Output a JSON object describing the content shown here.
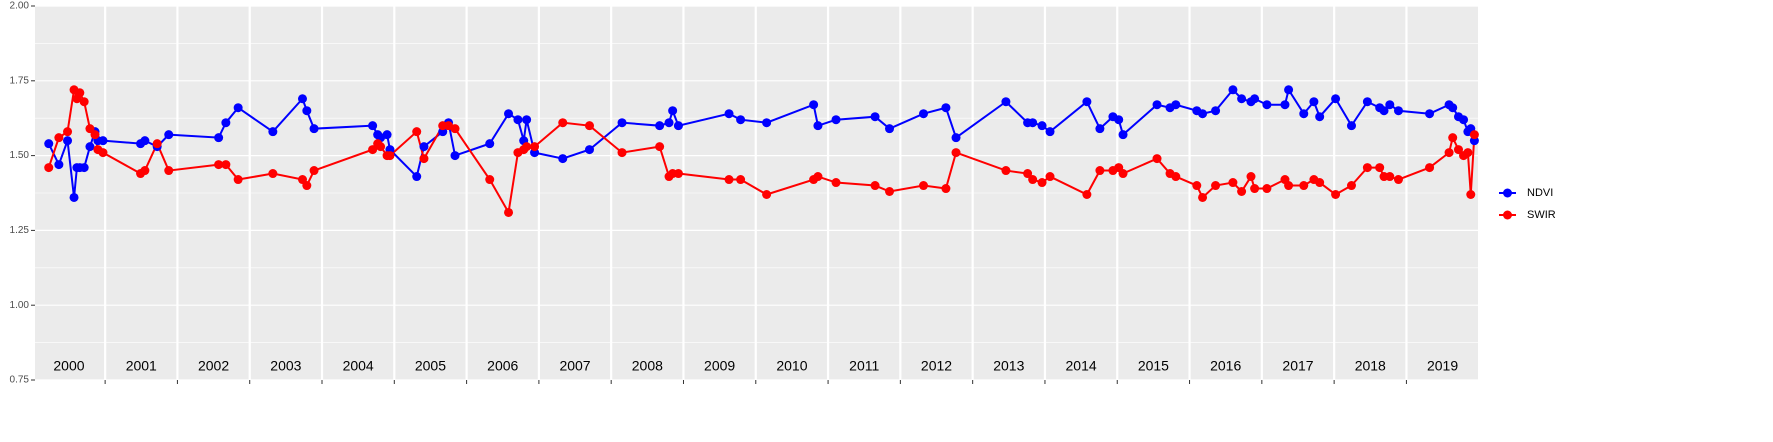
{
  "chart_data": {
    "type": "line",
    "x": [
      2000.22,
      2000.36,
      2000.48,
      2000.57,
      2000.61,
      2000.65,
      2000.71,
      2000.79,
      2000.86,
      2000.9,
      2000.97,
      2001.49,
      2001.55,
      2001.72,
      2001.88,
      2002.57,
      2002.67,
      2002.84,
      2003.32,
      2003.73,
      2003.79,
      2003.89,
      2004.7,
      2004.77,
      2004.81,
      2004.9,
      2004.94,
      2005.31,
      2005.41,
      2005.67,
      2005.75,
      2005.84,
      2006.32,
      2006.58,
      2006.71,
      2006.79,
      2006.83,
      2006.94,
      2007.33,
      2007.7,
      2008.15,
      2008.67,
      2008.8,
      2008.85,
      2008.93,
      2009.63,
      2009.79,
      2010.15,
      2010.8,
      2010.86,
      2011.11,
      2011.65,
      2011.85,
      2012.32,
      2012.63,
      2012.77,
      2013.46,
      2013.76,
      2013.83,
      2013.96,
      2014.07,
      2014.58,
      2014.76,
      2014.94,
      2015.02,
      2015.08,
      2015.55,
      2015.73,
      2015.81,
      2016.1,
      2016.18,
      2016.36,
      2016.6,
      2016.72,
      2016.85,
      2016.9,
      2017.07,
      2017.32,
      2017.37,
      2017.58,
      2017.72,
      2017.8,
      2018.02,
      2018.24,
      2018.46,
      2018.63,
      2018.69,
      2018.77,
      2018.89,
      2019.32,
      2019.59,
      2019.64,
      2019.72,
      2019.79,
      2019.85,
      2019.89,
      2019.94
    ],
    "series": [
      {
        "name": "NDVI",
        "color": "#0000ff",
        "values": [
          1.54,
          1.47,
          1.55,
          1.36,
          1.46,
          1.46,
          1.46,
          1.53,
          1.58,
          1.55,
          1.55,
          1.54,
          1.55,
          1.53,
          1.57,
          1.56,
          1.61,
          1.66,
          1.58,
          1.69,
          1.65,
          1.59,
          1.6,
          1.57,
          1.56,
          1.57,
          1.52,
          1.43,
          1.53,
          1.58,
          1.61,
          1.5,
          1.54,
          1.64,
          1.62,
          1.55,
          1.62,
          1.51,
          1.49,
          1.52,
          1.61,
          1.6,
          1.61,
          1.65,
          1.6,
          1.64,
          1.62,
          1.61,
          1.67,
          1.6,
          1.62,
          1.63,
          1.59,
          1.64,
          1.66,
          1.56,
          1.68,
          1.61,
          1.61,
          1.6,
          1.58,
          1.68,
          1.59,
          1.63,
          1.62,
          1.57,
          1.67,
          1.66,
          1.67,
          1.65,
          1.64,
          1.65,
          1.72,
          1.69,
          1.68,
          1.69,
          1.67,
          1.67,
          1.72,
          1.64,
          1.68,
          1.63,
          1.69,
          1.6,
          1.68,
          1.66,
          1.65,
          1.67,
          1.65,
          1.64,
          1.67,
          1.66,
          1.63,
          1.62,
          1.58,
          1.59,
          1.55
        ]
      },
      {
        "name": "SWIR",
        "color": "#ff0000",
        "values": [
          1.46,
          1.56,
          1.58,
          1.72,
          1.69,
          1.71,
          1.68,
          1.59,
          1.57,
          1.52,
          1.51,
          1.44,
          1.45,
          1.54,
          1.45,
          1.47,
          1.47,
          1.42,
          1.44,
          1.42,
          1.4,
          1.45,
          1.52,
          1.54,
          1.53,
          1.5,
          1.5,
          1.58,
          1.49,
          1.6,
          1.6,
          1.59,
          1.42,
          1.31,
          1.51,
          1.52,
          1.53,
          1.53,
          1.61,
          1.6,
          1.51,
          1.53,
          1.43,
          1.44,
          1.44,
          1.42,
          1.42,
          1.37,
          1.42,
          1.43,
          1.41,
          1.4,
          1.38,
          1.4,
          1.39,
          1.51,
          1.45,
          1.44,
          1.42,
          1.41,
          1.43,
          1.37,
          1.45,
          1.45,
          1.46,
          1.44,
          1.49,
          1.44,
          1.43,
          1.4,
          1.36,
          1.4,
          1.41,
          1.38,
          1.43,
          1.39,
          1.39,
          1.42,
          1.4,
          1.4,
          1.42,
          1.41,
          1.37,
          1.4,
          1.46,
          1.46,
          1.43,
          1.43,
          1.42,
          1.46,
          1.51,
          1.56,
          1.52,
          1.5,
          1.51,
          1.37,
          1.57
        ]
      }
    ],
    "xlim": [
      2000.03,
      2019.99
    ],
    "xticks": [
      {
        "value": 2000.5,
        "label": "2000"
      },
      {
        "value": 2001.5,
        "label": "2001"
      },
      {
        "value": 2002.5,
        "label": "2002"
      },
      {
        "value": 2003.5,
        "label": "2003"
      },
      {
        "value": 2004.5,
        "label": "2004"
      },
      {
        "value": 2005.5,
        "label": "2005"
      },
      {
        "value": 2006.5,
        "label": "2006"
      },
      {
        "value": 2007.5,
        "label": "2007"
      },
      {
        "value": 2008.5,
        "label": "2008"
      },
      {
        "value": 2009.5,
        "label": "2009"
      },
      {
        "value": 2010.5,
        "label": "2010"
      },
      {
        "value": 2011.5,
        "label": "2011"
      },
      {
        "value": 2012.5,
        "label": "2012"
      },
      {
        "value": 2013.5,
        "label": "2013"
      },
      {
        "value": 2014.5,
        "label": "2014"
      },
      {
        "value": 2015.5,
        "label": "2015"
      },
      {
        "value": 2016.5,
        "label": "2016"
      },
      {
        "value": 2017.5,
        "label": "2017"
      },
      {
        "value": 2018.5,
        "label": "2018"
      },
      {
        "value": 2019.5,
        "label": "2019"
      }
    ],
    "xgrid": [
      2001,
      2002,
      2003,
      2004,
      2005,
      2006,
      2007,
      2008,
      2009,
      2010,
      2011,
      2012,
      2013,
      2014,
      2015,
      2016,
      2017,
      2018,
      2019
    ],
    "ylim": [
      0.75,
      2.0
    ],
    "yticks": [
      {
        "value": 0.75,
        "label": "0.75"
      },
      {
        "value": 1.0,
        "label": "1.00"
      },
      {
        "value": 1.25,
        "label": "1.25"
      },
      {
        "value": 1.5,
        "label": "1.50"
      },
      {
        "value": 1.75,
        "label": "1.75"
      },
      {
        "value": 2.0,
        "label": "2.00"
      }
    ],
    "yminor": [
      0.875,
      1.125,
      1.375,
      1.625,
      1.875
    ],
    "grid": true,
    "legend": "right"
  }
}
